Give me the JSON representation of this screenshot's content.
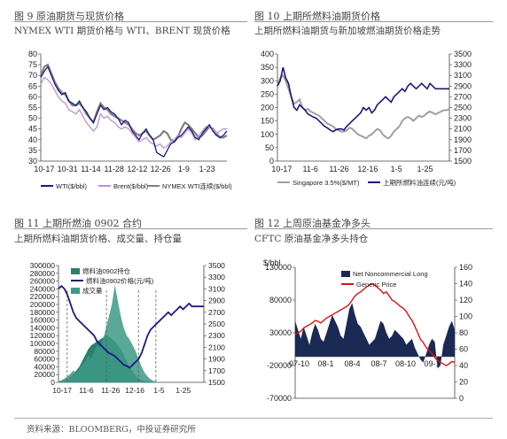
{
  "panels": [
    {
      "title": "图 9  原油期货与现货价格",
      "subtitle": "NYMEX WTI 期货价格与 WTI、BRENT 现货价格"
    },
    {
      "title": "图 10  上期所燃料油期货价格",
      "subtitle": "上期所燃料油期货与新加坡燃油期货价格走势"
    },
    {
      "title": "图 11  上期所燃油 0902 合约",
      "subtitle": "上期所燃料油期货价格、成交量、持仓量"
    },
    {
      "title": "图 12  上周原油基金净多头",
      "subtitle": "CFTC  原油基金净多头持仓"
    }
  ],
  "source": "资料来源：BLOOMBERG，中投证券研究所",
  "colors": {
    "wti": "#1a1a80",
    "brent": "#c08ed8",
    "nymex": "#808080",
    "singapore": "#a0a0a0",
    "shfe": "#1a1a80",
    "volume": "#2a7f70",
    "net_long": "#1a2a55",
    "generic": "#e01010"
  },
  "chart_data": [
    {
      "type": "line",
      "x_ticks": [
        "10-17",
        "10-31",
        "11-14",
        "11-28",
        "12-12",
        "12-26",
        "1-9",
        "1-23"
      ],
      "ylim": [
        30,
        80
      ],
      "y_ticks": [
        "80",
        "75",
        "70",
        "65",
        "60",
        "55",
        "50",
        "45",
        "40",
        "35",
        "30"
      ],
      "series": [
        {
          "name": "WTI($/bbl)",
          "values": [
            69,
            72,
            74,
            70,
            66,
            63,
            61,
            62,
            58,
            57,
            56,
            58,
            55,
            53,
            50,
            48,
            52,
            56,
            54,
            55,
            53,
            52,
            50,
            47,
            49,
            48,
            44,
            42,
            40,
            43,
            45,
            42,
            40,
            34,
            33,
            32,
            35,
            38,
            39,
            41,
            42,
            44,
            46,
            44,
            41,
            40,
            43,
            45,
            47,
            44,
            42,
            41,
            42,
            44
          ]
        },
        {
          "name": "Brent($/bbl)",
          "values": [
            66,
            69,
            68,
            66,
            63,
            60,
            58,
            57,
            54,
            53,
            52,
            54,
            51,
            48,
            46,
            44,
            46,
            52,
            50,
            51,
            49,
            48,
            46,
            45,
            46,
            45,
            43,
            41,
            39,
            40,
            41,
            39,
            38,
            37,
            38,
            36,
            37,
            39,
            40,
            42,
            41,
            43,
            45,
            43,
            40,
            42,
            44,
            46,
            46,
            45,
            43,
            44,
            45,
            45
          ]
        },
        {
          "name": "NYMEX WTI连续($/bbl)",
          "values": [
            70,
            74,
            75,
            71,
            67,
            64,
            62,
            61,
            58,
            56,
            56,
            57,
            55,
            52,
            50,
            48,
            53,
            57,
            55,
            54,
            52,
            51,
            50,
            49,
            48,
            47,
            45,
            43,
            42,
            43,
            44,
            42,
            40,
            41,
            42,
            44,
            43,
            40,
            39,
            41,
            45,
            48,
            47,
            45,
            43,
            41,
            42,
            44,
            46,
            45,
            43,
            41,
            41,
            42
          ]
        }
      ]
    },
    {
      "type": "line",
      "x_ticks": [
        "10-17",
        "11-6",
        "11-26",
        "12-16",
        "1-5",
        "1-25"
      ],
      "ylim": [
        0,
        400
      ],
      "y_ticks": [
        "400",
        "350",
        "300",
        "250",
        "200",
        "150",
        "100",
        "50",
        "0"
      ],
      "ylim_right": [
        1500,
        3500
      ],
      "y_ticks_right": [
        "3500",
        "3300",
        "3100",
        "2900",
        "2700",
        "2500",
        "2300",
        "2100",
        "1900",
        "1700",
        "1500"
      ],
      "series": [
        {
          "name": "Singapore 3.5%($/MT)",
          "axis": "left",
          "values": [
            280,
            310,
            320,
            300,
            270,
            240,
            215,
            220,
            230,
            200,
            190,
            195,
            185,
            180,
            175,
            170,
            160,
            150,
            140,
            135,
            130,
            120,
            115,
            110,
            110,
            115,
            125,
            120,
            110,
            100,
            95,
            90,
            85,
            95,
            100,
            110,
            120,
            115,
            100,
            90,
            85,
            95,
            110,
            120,
            130,
            150,
            160,
            165,
            160,
            150,
            160,
            170,
            165,
            170,
            180,
            185,
            180,
            175,
            180,
            185,
            190,
            190,
            195
          ]
        },
        {
          "name": "上期所燃料油连续(元/吨)",
          "axis": "right",
          "values": [
            2900,
            3000,
            3250,
            3050,
            2950,
            2700,
            2500,
            2450,
            2550,
            2500,
            2450,
            2380,
            2350,
            2320,
            2300,
            2250,
            2200,
            2150,
            2120,
            2080,
            2050,
            2080,
            2100,
            2100,
            2080,
            2150,
            2200,
            2250,
            2300,
            2350,
            2400,
            2500,
            2450,
            2500,
            2400,
            2450,
            2550,
            2600,
            2650,
            2700,
            2650,
            2600,
            2700,
            2750,
            2800,
            2850,
            2800,
            2900,
            2950,
            2900,
            2850,
            2900,
            2950,
            2900,
            2850,
            2950,
            2900,
            2850,
            2850,
            2850,
            2850,
            2850,
            2850
          ]
        }
      ]
    },
    {
      "type": "area",
      "x_ticks": [
        "10-17",
        "11-6",
        "11-26",
        "12-16",
        "1-5",
        "1-25"
      ],
      "ylim": [
        0,
        300000
      ],
      "y_ticks": [
        "300000",
        "280000",
        "260000",
        "240000",
        "220000",
        "200000",
        "180000",
        "160000",
        "140000",
        "120000",
        "100000",
        "80000",
        "60000",
        "40000",
        "20000",
        "0"
      ],
      "ylim_right": [
        1500,
        3500
      ],
      "y_ticks_right": [
        "3500",
        "3300",
        "3100",
        "2900",
        "2700",
        "2500",
        "2300",
        "2100",
        "1900",
        "1700",
        "1500"
      ],
      "series": [
        {
          "name": "燃料油0902持仓",
          "axis": "left",
          "values": [
            2000,
            4000,
            6000,
            10000,
            15000,
            22000,
            30000,
            40000,
            55000,
            70000,
            85000,
            95000,
            100000,
            105000,
            110000,
            115000,
            120000,
            118000,
            112000,
            105000,
            95000,
            85000,
            70000,
            55000,
            40000,
            28000,
            18000,
            10000,
            6000,
            4000,
            3000,
            2000,
            0,
            0,
            0,
            0,
            0,
            0,
            0,
            0,
            0,
            0,
            0,
            0,
            0,
            0,
            0,
            0,
            0,
            0
          ]
        },
        {
          "name": "燃料油0902价格(元/吨)",
          "axis": "right",
          "values": [
            3100,
            3150,
            3100,
            3000,
            2850,
            2700,
            2600,
            2550,
            2500,
            2450,
            2400,
            2350,
            2300,
            2200,
            2150,
            2100,
            2050,
            2000,
            1980,
            1950,
            1900,
            1850,
            1800,
            1780,
            1750,
            1800,
            1850,
            1900,
            2000,
            2150,
            2300,
            2400,
            2450,
            2500,
            2550,
            2600,
            2650,
            2700,
            2650,
            2700,
            2750,
            2800,
            2750,
            2800,
            2850,
            2800,
            2800,
            2800,
            2800,
            2800
          ]
        },
        {
          "name": "成交量",
          "axis": "left",
          "values": [
            2000,
            5000,
            10000,
            15000,
            22000,
            30000,
            25000,
            35000,
            45000,
            55000,
            70000,
            60000,
            80000,
            95000,
            90000,
            110000,
            140000,
            170000,
            200000,
            250000,
            210000,
            170000,
            140000,
            120000,
            110000,
            95000,
            80000,
            60000,
            40000,
            25000,
            15000,
            8000,
            4000,
            2000,
            0,
            0,
            0,
            0,
            0,
            0,
            0,
            0,
            0,
            0,
            0,
            0,
            0,
            0,
            0,
            0
          ]
        }
      ]
    },
    {
      "type": "area",
      "x_ticks": [
        "07-10",
        "08-1",
        "08-4",
        "08-7",
        "08-10",
        "09-1"
      ],
      "ylim": [
        -70000,
        150000
      ],
      "y_ticks": [
        "130000",
        "80000",
        "30000",
        "-20000",
        "-70000"
      ],
      "ylim_right": [
        0,
        160
      ],
      "y_ticks_right": [
        "160",
        "140",
        "120",
        "100",
        "80",
        "60",
        "40",
        "20",
        "0"
      ],
      "ylabel": "$/bbl",
      "series": [
        {
          "name": "Net Noncommercial Long",
          "axis": "left",
          "values": [
            60000,
            45000,
            30000,
            50000,
            35000,
            20000,
            40000,
            55000,
            45000,
            30000,
            25000,
            40000,
            55000,
            70000,
            60000,
            50000,
            35000,
            30000,
            55000,
            80000,
            90000,
            70000,
            55000,
            50000,
            40000,
            30000,
            20000,
            25000,
            30000,
            45000,
            60000,
            55000,
            40000,
            30000,
            35000,
            45000,
            40000,
            35000,
            30000,
            20000,
            25000,
            30000,
            15000,
            5000,
            -5000,
            -10000,
            5000,
            20000,
            30000,
            25000,
            -20000,
            -15000,
            20000,
            35000,
            50000,
            60000,
            45000
          ]
        },
        {
          "name": "Generic Price",
          "axis": "right",
          "values": [
            78,
            80,
            82,
            86,
            88,
            90,
            92,
            95,
            94,
            92,
            95,
            98,
            100,
            102,
            104,
            106,
            108,
            110,
            112,
            115,
            120,
            125,
            128,
            130,
            133,
            136,
            138,
            140,
            138,
            135,
            132,
            128,
            130,
            125,
            120,
            118,
            115,
            112,
            110,
            106,
            100,
            95,
            88,
            80,
            72,
            68,
            62,
            58,
            55,
            50,
            46,
            44,
            42,
            40,
            42,
            45,
            44
          ]
        }
      ]
    }
  ]
}
